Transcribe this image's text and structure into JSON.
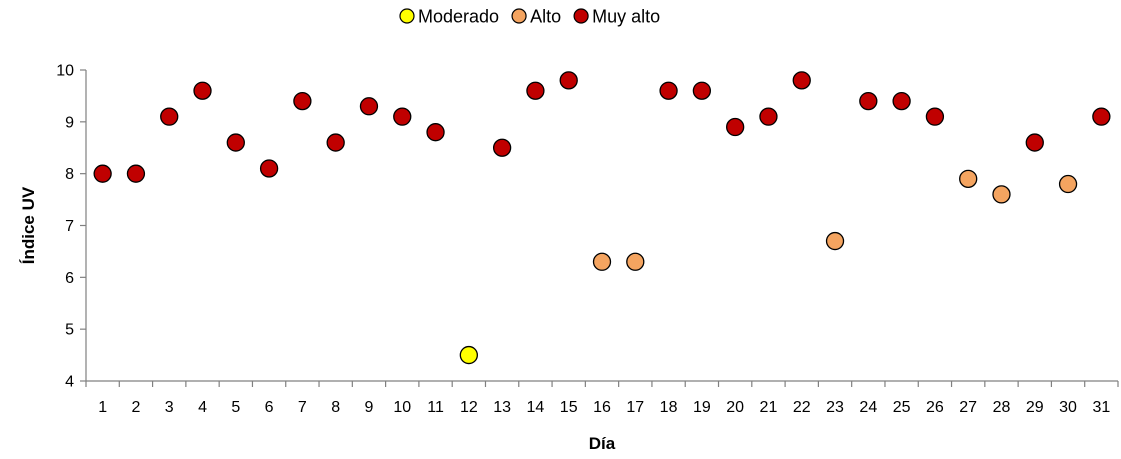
{
  "chart_data": {
    "type": "scatter",
    "title": "",
    "xlabel": "Día",
    "ylabel": "Índice UV",
    "xlim": [
      0.5,
      31.5
    ],
    "ylim": [
      4,
      10
    ],
    "yticks": [
      4,
      5,
      6,
      7,
      8,
      9,
      10
    ],
    "xticks": [
      1,
      2,
      3,
      4,
      5,
      6,
      7,
      8,
      9,
      10,
      11,
      12,
      13,
      14,
      15,
      16,
      17,
      18,
      19,
      20,
      21,
      22,
      23,
      24,
      25,
      26,
      27,
      28,
      29,
      30,
      31
    ],
    "grid": false,
    "legend_position": "top-center",
    "series": [
      {
        "name": "Moderado",
        "color": "#ffff00",
        "points": [
          [
            12,
            4.5
          ]
        ]
      },
      {
        "name": "Alto",
        "color": "#f4a460",
        "points": [
          [
            16,
            6.3
          ],
          [
            17,
            6.3
          ],
          [
            23,
            6.7
          ],
          [
            27,
            7.9
          ],
          [
            28,
            7.6
          ],
          [
            30,
            7.8
          ]
        ]
      },
      {
        "name": "Muy alto",
        "color": "#c00000",
        "points": [
          [
            1,
            8.0
          ],
          [
            2,
            8.0
          ],
          [
            3,
            9.1
          ],
          [
            4,
            9.6
          ],
          [
            5,
            8.6
          ],
          [
            6,
            8.1
          ],
          [
            7,
            9.4
          ],
          [
            8,
            8.6
          ],
          [
            9,
            9.3
          ],
          [
            10,
            9.1
          ],
          [
            11,
            8.8
          ],
          [
            13,
            8.5
          ],
          [
            14,
            9.6
          ],
          [
            15,
            9.8
          ],
          [
            18,
            9.6
          ],
          [
            19,
            9.6
          ],
          [
            20,
            8.9
          ],
          [
            21,
            9.1
          ],
          [
            22,
            9.8
          ],
          [
            24,
            9.4
          ],
          [
            25,
            9.4
          ],
          [
            26,
            9.1
          ],
          [
            29,
            8.6
          ],
          [
            31,
            9.1
          ]
        ]
      }
    ]
  }
}
